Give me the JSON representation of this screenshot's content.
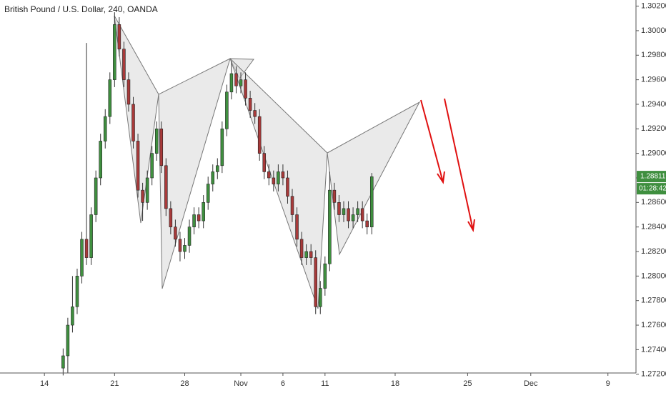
{
  "chart_data": {
    "type": "candlestick",
    "title": "British Pound / U.S. Dollar, 240, OANDA",
    "up_color": "#3f8f3f",
    "down_color": "#a83a3a",
    "xlim": [
      -19,
      253
    ],
    "xticks": [
      {
        "value": 0,
        "label": "14"
      },
      {
        "value": 30,
        "label": "21"
      },
      {
        "value": 60,
        "label": "28"
      },
      {
        "value": 84,
        "label": "Nov"
      },
      {
        "value": 102,
        "label": "6"
      },
      {
        "value": 120,
        "label": "11"
      },
      {
        "value": 150,
        "label": "18"
      },
      {
        "value": 181,
        "label": "25"
      },
      {
        "value": 208,
        "label": "Dec"
      },
      {
        "value": 241,
        "label": "9"
      }
    ],
    "ylim": [
      1.2721,
      1.3025
    ],
    "yticks": [
      {
        "value": 1.272,
        "label": "1.27200"
      },
      {
        "value": 1.274,
        "label": "1.27400"
      },
      {
        "value": 1.276,
        "label": "1.27600"
      },
      {
        "value": 1.278,
        "label": "1.27800"
      },
      {
        "value": 1.28,
        "label": "1.28000"
      },
      {
        "value": 1.282,
        "label": "1.28200"
      },
      {
        "value": 1.284,
        "label": "1.28400"
      },
      {
        "value": 1.286,
        "label": "1.28600"
      },
      {
        "value": 1.288,
        "label": "1.28800"
      },
      {
        "value": 1.29,
        "label": "1.29000"
      },
      {
        "value": 1.292,
        "label": "1.29200"
      },
      {
        "value": 1.294,
        "label": "1.29400"
      },
      {
        "value": 1.296,
        "label": "1.29600"
      },
      {
        "value": 1.298,
        "label": "1.29800"
      },
      {
        "value": 1.3,
        "label": "1.30000"
      },
      {
        "value": 1.302,
        "label": "1.30200"
      }
    ],
    "last_price": {
      "value": 1.28811,
      "label": "1.28811"
    },
    "countdown": "01:28:42",
    "x": [
      8,
      10,
      12,
      14,
      16,
      18,
      20,
      22,
      24,
      26,
      28,
      30,
      32,
      34,
      36,
      38,
      40,
      42,
      44,
      46,
      48,
      50,
      52,
      54,
      56,
      58,
      60,
      62,
      64,
      66,
      68,
      70,
      72,
      74,
      76,
      78,
      80,
      82,
      84,
      86,
      88,
      90,
      92,
      94,
      96,
      98,
      100,
      102,
      104,
      106,
      108,
      110,
      112,
      114,
      116,
      118,
      120,
      122,
      124,
      126,
      128,
      130,
      132,
      134,
      136,
      138,
      140
    ],
    "open": [
      1.2725,
      1.2735,
      1.276,
      1.2775,
      1.28,
      1.283,
      1.2815,
      1.285,
      1.288,
      1.291,
      1.293,
      1.296,
      1.3005,
      1.2985,
      1.296,
      1.294,
      1.291,
      1.287,
      1.286,
      1.288,
      1.29,
      1.292,
      1.289,
      1.2855,
      1.284,
      1.283,
      1.282,
      1.2825,
      1.284,
      1.285,
      1.2845,
      1.286,
      1.2875,
      1.2885,
      1.289,
      1.292,
      1.295,
      1.2965,
      1.2955,
      1.296,
      1.2945,
      1.2935,
      1.293,
      1.29,
      1.2885,
      1.288,
      1.2875,
      1.2885,
      1.288,
      1.2865,
      1.285,
      1.283,
      1.2815,
      1.282,
      1.2815,
      1.2775,
      1.279,
      1.281,
      1.287,
      1.286,
      1.285,
      1.2855,
      1.2845,
      1.285,
      1.2855,
      1.2845,
      1.284
    ],
    "high": [
      1.2741,
      1.2766,
      1.28,
      1.2806,
      1.2836,
      1.299,
      1.2856,
      1.2886,
      1.2916,
      1.2936,
      1.2966,
      1.3015,
      1.3011,
      1.2991,
      1.2966,
      1.2946,
      1.2916,
      1.2876,
      1.2886,
      1.2906,
      1.2926,
      1.2926,
      1.2896,
      1.2861,
      1.2846,
      1.2836,
      1.2831,
      1.2846,
      1.2856,
      1.2856,
      1.2866,
      1.2881,
      1.2891,
      1.2896,
      1.2926,
      1.2956,
      1.2975,
      1.2971,
      1.2966,
      1.2966,
      1.2951,
      1.2941,
      1.2936,
      1.2906,
      1.2891,
      1.2886,
      1.2891,
      1.2891,
      1.2886,
      1.2871,
      1.2856,
      1.2836,
      1.2826,
      1.2826,
      1.2821,
      1.2796,
      1.2816,
      1.2885,
      1.2876,
      1.2866,
      1.2861,
      1.2861,
      1.2856,
      1.2861,
      1.2861,
      1.2851,
      1.2884
    ],
    "low": [
      1.2719,
      1.2721,
      1.2754,
      1.2769,
      1.2794,
      1.2809,
      1.2809,
      1.2844,
      1.2874,
      1.2904,
      1.2924,
      1.2954,
      1.2979,
      1.2954,
      1.2934,
      1.2904,
      1.2864,
      1.2845,
      1.2854,
      1.2874,
      1.2894,
      1.2884,
      1.2849,
      1.2834,
      1.2824,
      1.2812,
      1.2814,
      1.2819,
      1.2834,
      1.2839,
      1.2839,
      1.2854,
      1.2869,
      1.2879,
      1.2884,
      1.2914,
      1.2944,
      1.2949,
      1.2949,
      1.2939,
      1.2929,
      1.2924,
      1.2894,
      1.2879,
      1.2874,
      1.2869,
      1.2869,
      1.2874,
      1.2859,
      1.2844,
      1.2824,
      1.2809,
      1.2809,
      1.2809,
      1.2769,
      1.2769,
      1.2784,
      1.2804,
      1.2854,
      1.2844,
      1.2844,
      1.2839,
      1.2839,
      1.2844,
      1.2839,
      1.2834,
      1.2834
    ],
    "close": [
      1.2735,
      1.276,
      1.2775,
      1.28,
      1.283,
      1.2815,
      1.285,
      1.288,
      1.291,
      1.293,
      1.296,
      1.3005,
      1.2985,
      1.296,
      1.294,
      1.291,
      1.287,
      1.286,
      1.288,
      1.29,
      1.292,
      1.289,
      1.2855,
      1.284,
      1.283,
      1.282,
      1.2825,
      1.284,
      1.285,
      1.2845,
      1.286,
      1.2875,
      1.2885,
      1.289,
      1.292,
      1.295,
      1.2965,
      1.2955,
      1.296,
      1.2945,
      1.2935,
      1.293,
      1.29,
      1.2885,
      1.288,
      1.2875,
      1.2885,
      1.288,
      1.2865,
      1.285,
      1.283,
      1.2815,
      1.282,
      1.2815,
      1.2775,
      1.279,
      1.281,
      1.287,
      1.286,
      1.285,
      1.2855,
      1.2845,
      1.285,
      1.2855,
      1.2845,
      1.284,
      1.2881
    ]
  }
}
